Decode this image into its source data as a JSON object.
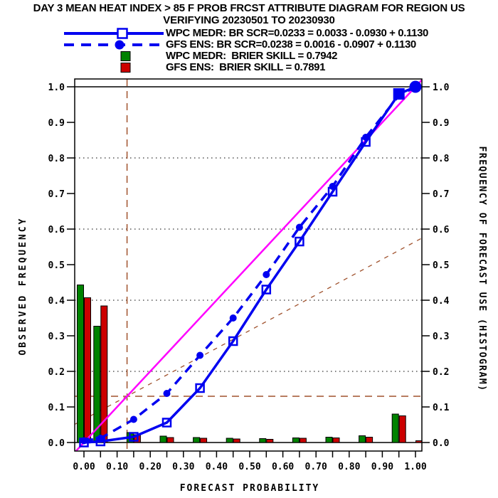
{
  "title": "DAY 3 MEAN HEAT INDEX > 85 F PROB FRCST ATTRIBUTE DIAGRAM FOR REGION US",
  "subtitle": "VERIFYING 20230501 TO 20230930",
  "legend": {
    "items": [
      {
        "label": "WPC MEDR: BR SCR=0.0233 = 0.0033 - 0.0930 + 0.1130",
        "marker": "solid-line-open-square",
        "color": "#0000f0"
      },
      {
        "label": "GFS ENS: BR SCR=0.0238 = 0.0016 - 0.0907 + 0.1130",
        "marker": "dashed-line-filled-circle",
        "color": "#0000f0"
      },
      {
        "label": "WPC MEDR:  BRIER SKILL = 0.7942",
        "marker": "filled-square",
        "color": "#008200"
      },
      {
        "label": "GFS ENS:  BRIER SKILL = 0.7891",
        "marker": "filled-square",
        "color": "#cc0000"
      }
    ]
  },
  "axes": {
    "xlabel": "FORECAST PROBABILITY",
    "ylabel_left": "OBSERVED FREQUENCY",
    "ylabel_right": "FREQUENCY OF FORECAST USE (HISTOGRAM)",
    "x_tick_labels": [
      "0.00",
      "0.10",
      "0.20",
      "0.30",
      "0.40",
      "0.50",
      "0.60",
      "0.70",
      "0.80",
      "0.90",
      "1.00"
    ],
    "y_tick_labels": [
      "0.0",
      "0.1",
      "0.2",
      "0.3",
      "0.4",
      "0.5",
      "0.6",
      "0.7",
      "0.8",
      "0.9",
      "1.0"
    ],
    "xlim": [
      0,
      1
    ],
    "ylim": [
      0,
      1
    ],
    "x_minor_tick_step": 0.05
  },
  "colors": {
    "blue": "#0000f0",
    "magenta": "#ff00ff",
    "green": "#008200",
    "red": "#cc0000",
    "brown": "#a0522d",
    "black": "#000000"
  },
  "chart_data": [
    {
      "type": "line",
      "title": "reliability curves",
      "x": [
        0.0,
        0.05,
        0.15,
        0.25,
        0.35,
        0.45,
        0.55,
        0.65,
        0.75,
        0.85,
        0.95,
        1.0
      ],
      "series": [
        {
          "name": "WPC MEDR",
          "style": "solid",
          "marker": "open-square",
          "color": "#0000f0",
          "values": [
            0.0,
            0.003,
            0.016,
            0.056,
            0.153,
            0.285,
            0.43,
            0.565,
            0.705,
            0.845,
            0.98,
            1.0
          ],
          "small_marker_max_x": 0.85,
          "big_marker": {
            "x": 0.95,
            "y": 0.98
          }
        },
        {
          "name": "GFS ENS",
          "style": "dashed",
          "marker": "filled-circle",
          "color": "#0000f0",
          "values": [
            0.005,
            0.012,
            0.065,
            0.138,
            0.245,
            0.35,
            0.472,
            0.605,
            0.72,
            0.858,
            0.975,
            1.0
          ],
          "small_marker_max_x": 0.95,
          "big_marker": {
            "x": 1.0,
            "y": 1.0
          }
        }
      ],
      "reference_lines": {
        "perfect_reliability_diagonal": {
          "color": "#ff00ff"
        },
        "no_skill": {
          "slope": 0.5,
          "climatology": 0.13,
          "color": "#a0522d",
          "style": "dashed"
        },
        "climatology_vertical_x": 0.13,
        "climatology_horizontal_y": 0.13,
        "solid_gridlines_y": [
          0.0,
          1.0
        ],
        "dotted_gridlines_y": [
          0.2,
          0.4,
          0.6,
          0.8
        ]
      }
    },
    {
      "type": "bar",
      "title": "frequency of forecast use histogram",
      "categories": [
        0.0,
        0.05,
        0.15,
        0.25,
        0.35,
        0.45,
        0.55,
        0.65,
        0.75,
        0.85,
        0.95,
        1.0
      ],
      "series": [
        {
          "name": "WPC MEDR forecast use",
          "color": "#008200",
          "values": [
            0.443,
            0.327,
            0.028,
            0.018,
            0.014,
            0.012,
            0.011,
            0.013,
            0.015,
            0.019,
            0.08,
            0.0
          ]
        },
        {
          "name": "GFS ENS forecast use",
          "color": "#cc0000",
          "values": [
            0.407,
            0.384,
            0.022,
            0.014,
            0.012,
            0.01,
            0.009,
            0.012,
            0.013,
            0.015,
            0.075,
            0.005
          ]
        }
      ]
    }
  ]
}
